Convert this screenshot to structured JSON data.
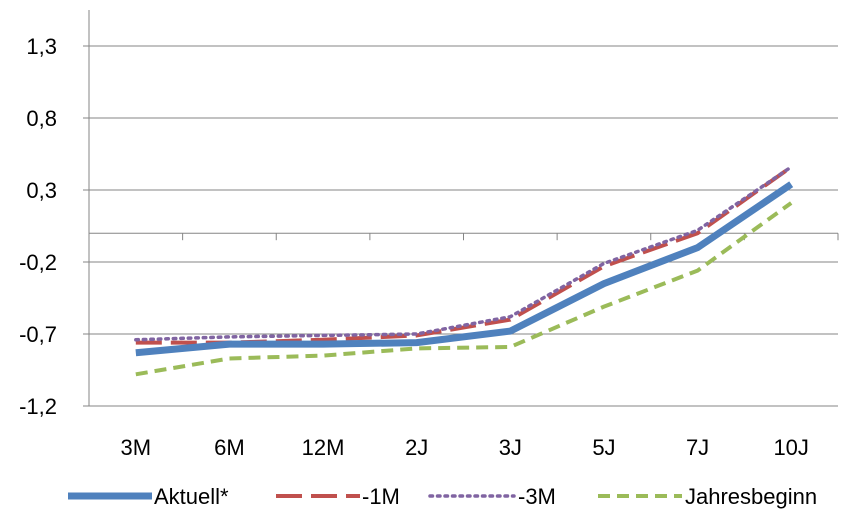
{
  "chart_data": {
    "type": "line",
    "categories": [
      "3M",
      "6M",
      "12M",
      "2J",
      "3J",
      "5J",
      "7J",
      "10J"
    ],
    "ylim": [
      -1.2,
      1.55
    ],
    "yticks": [
      -1.2,
      -0.7,
      -0.2,
      0.3,
      0.8,
      1.3
    ],
    "ytick_labels": [
      "-1,2",
      "-0,7",
      "-0,2",
      "0,3",
      "0,8",
      "1,3"
    ],
    "x_axis_crossing": 0.0,
    "grid": "horizontal",
    "legend_position": "bottom",
    "series": [
      {
        "name": "Aktuell*",
        "values": [
          -0.83,
          -0.77,
          -0.77,
          -0.76,
          -0.68,
          -0.35,
          -0.1,
          0.34
        ],
        "color": "#4f81bd",
        "dash": "solid"
      },
      {
        "name": "-1M",
        "values": [
          -0.76,
          -0.76,
          -0.74,
          -0.71,
          -0.6,
          -0.23,
          0.0,
          0.46
        ],
        "color": "#c0504d",
        "dash": "long-dash"
      },
      {
        "name": "-3M",
        "values": [
          -0.74,
          -0.72,
          -0.71,
          -0.7,
          -0.58,
          -0.21,
          0.02,
          0.46
        ],
        "color": "#8064a2",
        "dash": "dotted"
      },
      {
        "name": "Jahresbeginn",
        "values": [
          -0.98,
          -0.87,
          -0.85,
          -0.8,
          -0.79,
          -0.51,
          -0.26,
          0.21
        ],
        "color": "#9bbb59",
        "dash": "short-dash"
      }
    ]
  }
}
